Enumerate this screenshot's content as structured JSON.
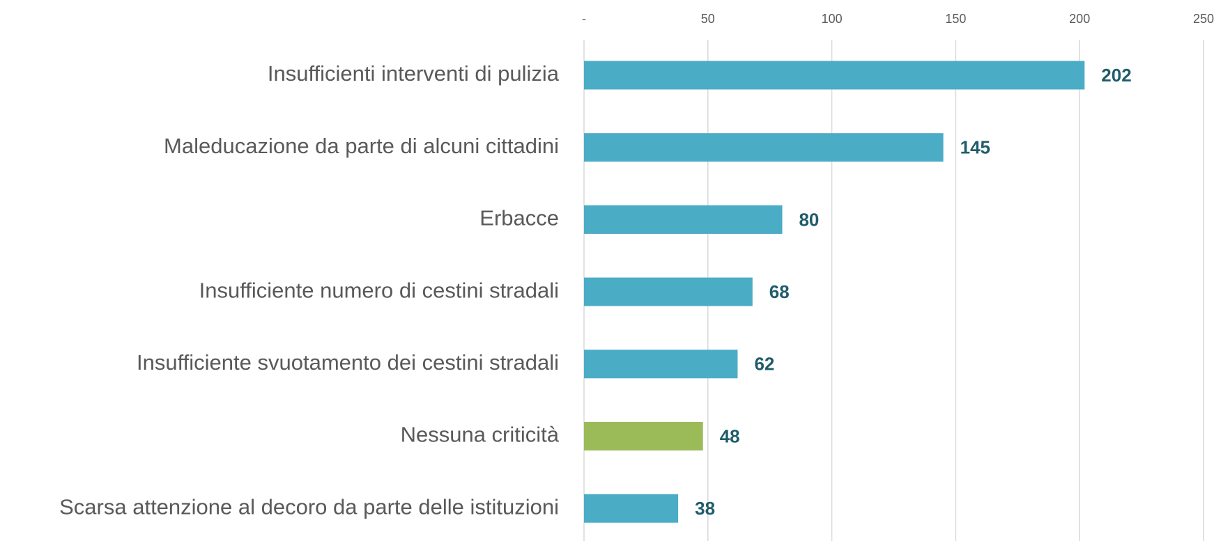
{
  "chart_data": {
    "type": "hbar",
    "categories": [
      "Insufficienti interventi di pulizia",
      "Maleducazione da parte di alcuni cittadini",
      "Erbacce",
      "Insufficiente numero di cestini stradali",
      "Insufficiente svuotamento dei cestini stradali",
      "Nessuna criticità",
      "Scarsa attenzione al decoro da parte delle istituzioni"
    ],
    "values": [
      202,
      145,
      80,
      68,
      62,
      48,
      38
    ],
    "colors": [
      "#4bacc6",
      "#4bacc6",
      "#4bacc6",
      "#4bacc6",
      "#4bacc6",
      "#9bbb59",
      "#4bacc6"
    ],
    "xlim": [
      0,
      250
    ],
    "xticks": [
      {
        "value": 0,
        "label": "-"
      },
      50,
      100,
      150,
      200,
      250
    ],
    "grid": true
  }
}
